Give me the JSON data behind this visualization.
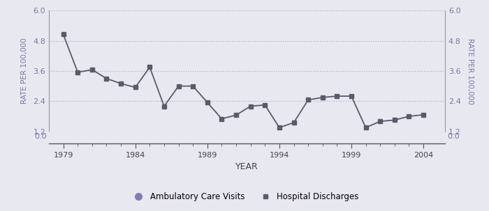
{
  "years": [
    1979,
    1980,
    1981,
    1982,
    1983,
    1984,
    1985,
    1986,
    1987,
    1988,
    1989,
    1990,
    1991,
    1992,
    1993,
    1994,
    1995,
    1996,
    1997,
    1998,
    1999,
    2000,
    2001,
    2002,
    2003,
    2004
  ],
  "hospital_discharges": [
    5.05,
    3.55,
    3.65,
    3.3,
    3.1,
    2.95,
    3.75,
    2.2,
    3.0,
    3.0,
    2.35,
    1.7,
    1.85,
    2.2,
    2.25,
    1.35,
    1.55,
    2.45,
    2.55,
    2.6,
    2.6,
    1.35,
    1.6,
    1.65,
    1.8,
    1.86
  ],
  "ylim_main": [
    1.2,
    6.0
  ],
  "ylim_zero": [
    0.0,
    0.5
  ],
  "yticks_main": [
    1.2,
    2.4,
    3.6,
    4.8,
    6.0
  ],
  "xlim_start": 1978.0,
  "xlim_end": 2005.5,
  "xtick_labels": [
    "1979",
    "1984",
    "1989",
    "1994",
    "1999",
    "2004"
  ],
  "xtick_positions": [
    1979,
    1984,
    1989,
    1994,
    1999,
    2004
  ],
  "xlabel": "YEAR",
  "ylabel_left": "RATE PER 100,000",
  "ylabel_right": "RATE PER 100,000",
  "line_color": "#5a5a6a",
  "marker_color": "#5a5a6a",
  "legend_circle_color": "#8080b0",
  "bg_color": "#e8e8f0",
  "grid_color": "#b0b0b8",
  "tick_label_color": "#7878a8",
  "axis_label_color": "#7878a8",
  "xlabel_color": "#444444"
}
